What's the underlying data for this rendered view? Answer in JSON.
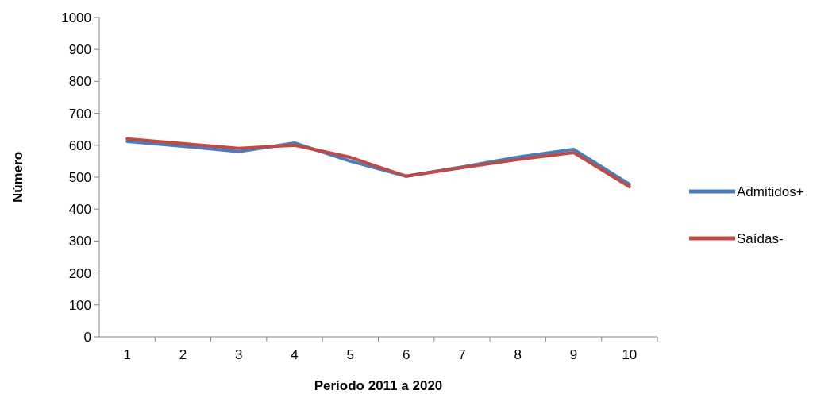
{
  "chart_data": {
    "type": "line",
    "xlabel": "Período 2011 a 2020",
    "ylabel": "Número",
    "categories": [
      "1",
      "2",
      "3",
      "4",
      "5",
      "6",
      "7",
      "8",
      "9",
      "10"
    ],
    "series": [
      {
        "name": "Admitidos+",
        "color": "#4a7ebb",
        "values": [
          612,
          597,
          580,
          607,
          550,
          503,
          532,
          563,
          587,
          478
        ]
      },
      {
        "name": "Saídas-",
        "color": "#be4b48",
        "values": [
          620,
          605,
          590,
          600,
          562,
          503,
          530,
          555,
          577,
          470
        ]
      }
    ],
    "ylim": [
      0,
      1000
    ],
    "yticks": [
      0,
      100,
      200,
      300,
      400,
      500,
      600,
      700,
      800,
      900,
      1000
    ],
    "grid": false,
    "legend": "right",
    "marker": "none",
    "line_style": "solid"
  }
}
